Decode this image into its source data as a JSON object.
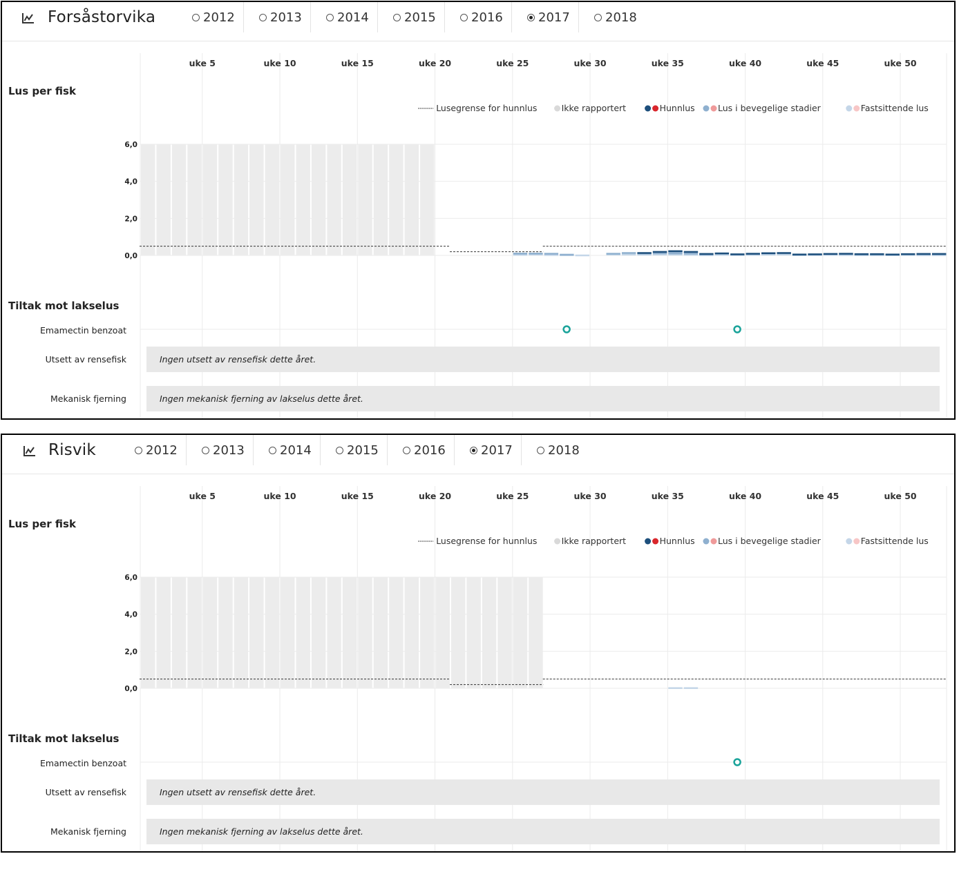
{
  "years": [
    "2012",
    "2013",
    "2014",
    "2015",
    "2016",
    "2017",
    "2018"
  ],
  "selected_year": "2017",
  "week_ticks": [
    "uke 5",
    "uke 10",
    "uke 15",
    "uke 20",
    "uke 25",
    "uke 30",
    "uke 35",
    "uke 40",
    "uke 45",
    "uke 50"
  ],
  "y_ticks": [
    "6,0",
    "4,0",
    "2,0",
    "0,0"
  ],
  "labels": {
    "lice_per_fish": "Lus per fisk",
    "measures": "Tiltak mot lakselus",
    "emamectin": "Emamectin benzoat",
    "cleanerfish": "Utsett av rensefisk",
    "mechanical": "Mekanisk fjerning"
  },
  "legend": [
    {
      "label": "Lusegrense for hunnlus",
      "kind": "dash",
      "colors": [
        "#333333"
      ]
    },
    {
      "label": "Ikke rapportert",
      "kind": "dots",
      "colors": [
        "#d9d9d9"
      ]
    },
    {
      "label": "Hunnlus",
      "kind": "dots",
      "colors": [
        "#1d4f7c",
        "#d9262c"
      ]
    },
    {
      "label": "Lus i bevegelige stadier",
      "kind": "dots",
      "colors": [
        "#8fb0cf",
        "#ef9a9a"
      ]
    },
    {
      "label": "Fastsittende lus",
      "kind": "dots",
      "colors": [
        "#c4d6e8",
        "#f7c6c6"
      ]
    }
  ],
  "colors": {
    "not_reported": "#ececec",
    "female": "#1d4f7c",
    "mobile": "#8fb0cf",
    "attached": "#c4d6e8",
    "treatment": "#1aa39a",
    "grid": "#ebebeb",
    "measure_box": "#e8e8e8"
  },
  "sites": [
    {
      "name": "Forsåstorvika",
      "measure_texts": {
        "cleanerfish": "Ingen utsett av rensefisk dette året.",
        "mechanical": "Ingen mekanisk fjerning av lakselus dette året."
      },
      "chart_data": {
        "type": "bar",
        "title": "Lus per fisk",
        "x_unit": "uke",
        "x_range": [
          1,
          52
        ],
        "ylim": [
          0,
          6
        ],
        "not_reported_weeks": [
          1,
          2,
          3,
          4,
          5,
          6,
          7,
          8,
          9,
          10,
          11,
          12,
          13,
          14,
          15,
          16,
          17,
          18,
          19
        ],
        "limit_line": [
          {
            "from_week": 1,
            "to_week": 20,
            "value": 0.5
          },
          {
            "from_week": 21,
            "to_week": 26,
            "value": 0.2
          },
          {
            "from_week": 27,
            "to_week": 52,
            "value": 0.5
          }
        ],
        "series": [
          {
            "name": "Hunnlus",
            "weeks": [
              33,
              34,
              35,
              36,
              37,
              38,
              39,
              40,
              41,
              42,
              43,
              44,
              45,
              46,
              47,
              48,
              49,
              50,
              51,
              52
            ],
            "values": [
              0.01,
              0.02,
              0.03,
              0.02,
              0.02,
              0.0,
              0.0,
              0.01,
              0.0,
              0.0,
              0.0,
              0.0,
              0.0,
              0.01,
              0.01,
              0.01,
              0.0,
              0.0,
              0.01,
              0.01
            ]
          },
          {
            "name": "Lus i bevegelige stadier",
            "weeks": [
              25,
              26,
              27,
              28,
              31,
              32,
              33,
              34,
              35,
              36,
              37,
              38,
              39,
              40,
              41,
              42,
              43,
              44,
              45,
              46,
              47,
              48,
              49,
              50,
              51,
              52
            ],
            "values": [
              0.06,
              0.04,
              0.06,
              0.02,
              0.03,
              0.05,
              0.06,
              0.1,
              0.14,
              0.12,
              0.03,
              0.06,
              0.02,
              0.03,
              0.06,
              0.06,
              0.02,
              0.02,
              0.03,
              0.04,
              0.03,
              0.03,
              0.02,
              0.03,
              0.04,
              0.04
            ]
          },
          {
            "name": "Fastsittende lus",
            "weeks": [
              25,
              26,
              27,
              28,
              29,
              31,
              32,
              33,
              34,
              35,
              36,
              37,
              38,
              39,
              40,
              41,
              42,
              43,
              44,
              45,
              46,
              47,
              48,
              49,
              50,
              51,
              52
            ],
            "values": [
              0.04,
              0.06,
              0.03,
              0.02,
              0.01,
              0.06,
              0.08,
              0.05,
              0.06,
              0.05,
              0.04,
              0.02,
              0.04,
              0.03,
              0.04,
              0.05,
              0.06,
              0.02,
              0.03,
              0.04,
              0.03,
              0.02,
              0.02,
              0.02,
              0.03,
              0.02,
              0.02
            ]
          }
        ],
        "treatments": {
          "Emamectin benzoat": [
            28,
            39
          ]
        }
      }
    },
    {
      "name": "Risvik",
      "measure_texts": {
        "cleanerfish": "Ingen utsett av rensefisk dette året.",
        "mechanical": "Ingen mekanisk fjerning av lakselus dette året."
      },
      "chart_data": {
        "type": "bar",
        "title": "Lus per fisk",
        "x_unit": "uke",
        "x_range": [
          1,
          52
        ],
        "ylim": [
          0,
          6
        ],
        "not_reported_weeks": [
          1,
          2,
          3,
          4,
          5,
          6,
          7,
          8,
          9,
          10,
          11,
          12,
          13,
          14,
          15,
          16,
          17,
          18,
          19,
          20,
          21,
          22,
          23,
          24,
          25,
          26
        ],
        "limit_line": [
          {
            "from_week": 1,
            "to_week": 20,
            "value": 0.5
          },
          {
            "from_week": 21,
            "to_week": 26,
            "value": 0.2
          },
          {
            "from_week": 27,
            "to_week": 52,
            "value": 0.5
          }
        ],
        "series": [
          {
            "name": "Hunnlus",
            "weeks": [],
            "values": []
          },
          {
            "name": "Lus i bevegelige stadier",
            "weeks": [],
            "values": []
          },
          {
            "name": "Fastsittende lus",
            "weeks": [
              35,
              36
            ],
            "values": [
              0.02,
              0.02
            ]
          }
        ],
        "treatments": {
          "Emamectin benzoat": [
            39
          ]
        }
      }
    }
  ]
}
